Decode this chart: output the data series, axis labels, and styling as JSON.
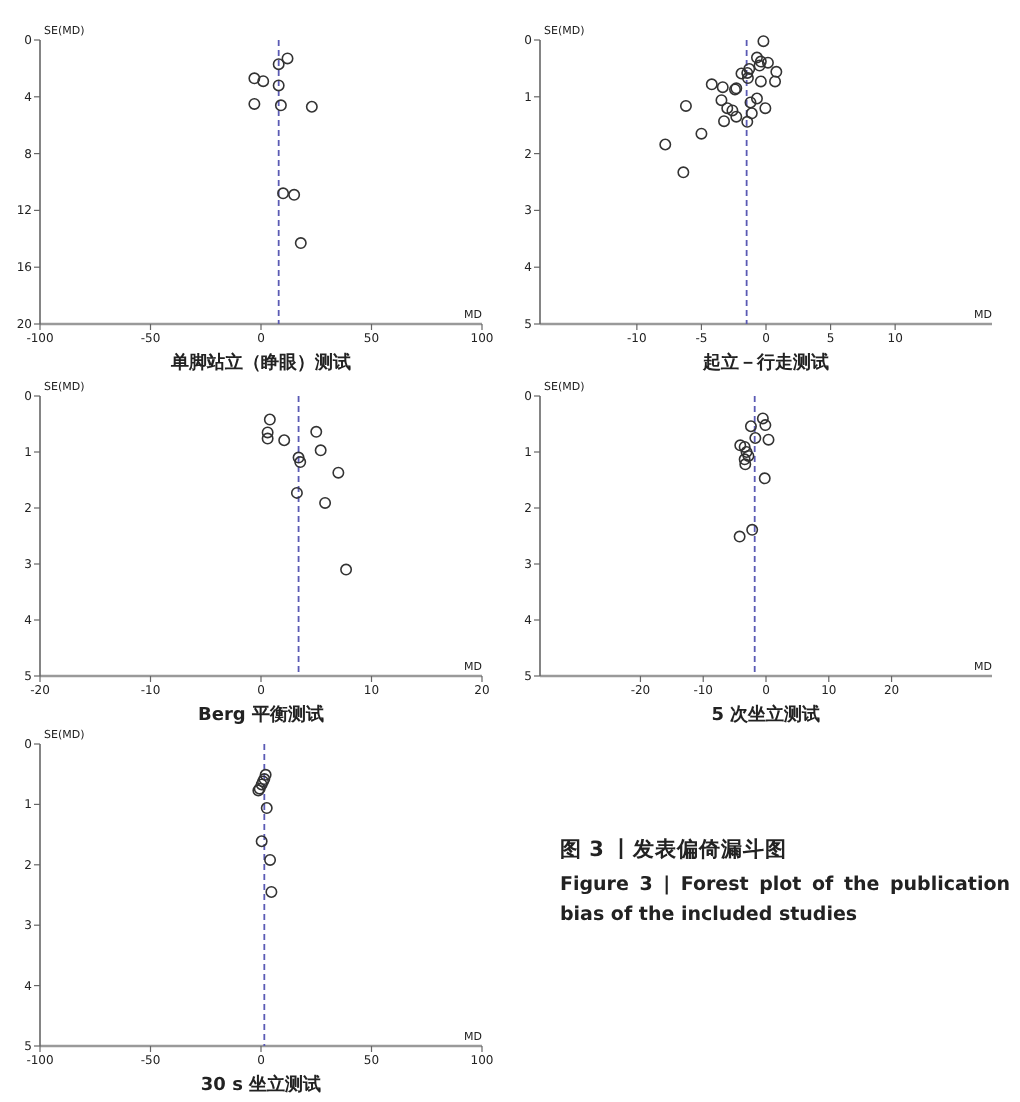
{
  "chart_data": [
    {
      "type": "scatter",
      "title": "单脚站立（睁眼）测试",
      "xlabel": "MD",
      "ylabel": "SE(MD)",
      "xlim": [
        -100,
        100
      ],
      "ylim": [
        20,
        0
      ],
      "xticks": [
        -100,
        -50,
        0,
        50,
        100
      ],
      "yticks": [
        0,
        4,
        8,
        12,
        16,
        20
      ],
      "grid": false,
      "marker": "circle",
      "series": [
        {
          "color": "#333333",
          "x": [
            12,
            8,
            -3,
            1,
            8,
            -3,
            9,
            23,
            10,
            15,
            18
          ],
          "values": [
            1.3,
            1.7,
            2.7,
            2.9,
            3.2,
            4.5,
            4.6,
            4.7,
            10.8,
            10.9,
            14.3
          ]
        }
      ],
      "ref_lines": [
        {
          "axis": "x",
          "value": 8,
          "color": "#5a5ab4",
          "line_style": "dashed"
        }
      ]
    },
    {
      "type": "scatter",
      "title": "起立－行走测试",
      "xlabel": "MD",
      "ylabel": "SE(MD)",
      "xlim": [
        -17.5,
        17.5
      ],
      "ylim": [
        5,
        0
      ],
      "xticks": [
        -10,
        -5,
        0,
        5,
        10
      ],
      "yticks": [
        0,
        1,
        2,
        3,
        4,
        5
      ],
      "grid": false,
      "marker": "circle",
      "series": [
        {
          "color": "#333333",
          "x": [
            -0.2,
            -0.7,
            -0.4,
            0.15,
            -0.5,
            0.8,
            -1.3,
            -1.45,
            -1.9,
            -1.4,
            0.7,
            -0.4,
            -4.2,
            -3.35,
            -2.3,
            -2.4,
            -0.7,
            -3.45,
            -1.2,
            -6.2,
            -3.0,
            -2.6,
            -0.05,
            -1.1,
            -2.3,
            -3.25,
            -1.45,
            -5.0,
            -7.8,
            -6.4
          ],
          "values": [
            0.02,
            0.31,
            0.38,
            0.4,
            0.45,
            0.56,
            0.51,
            0.58,
            0.59,
            0.67,
            0.73,
            0.73,
            0.78,
            0.83,
            0.85,
            0.87,
            1.03,
            1.06,
            1.1,
            1.16,
            1.2,
            1.24,
            1.2,
            1.29,
            1.35,
            1.43,
            1.44,
            1.65,
            1.84,
            2.33
          ]
        }
      ],
      "ref_lines": [
        {
          "axis": "x",
          "value": -1.5,
          "color": "#5a5ab4",
          "line_style": "dashed"
        }
      ]
    },
    {
      "type": "scatter",
      "title": "Berg 平衡测试",
      "xlabel": "MD",
      "ylabel": "SE(MD)",
      "xlim": [
        -20,
        20
      ],
      "ylim": [
        5,
        0
      ],
      "xticks": [
        -20,
        -10,
        0,
        10,
        20
      ],
      "yticks": [
        0,
        1,
        2,
        3,
        4,
        5
      ],
      "grid": false,
      "marker": "circle",
      "series": [
        {
          "color": "#333333",
          "x": [
            0.8,
            0.6,
            0.6,
            2.1,
            5.0,
            5.4,
            3.4,
            3.55,
            7.0,
            3.25,
            5.8,
            7.7
          ],
          "values": [
            0.42,
            0.65,
            0.76,
            0.79,
            0.64,
            0.97,
            1.1,
            1.18,
            1.37,
            1.73,
            1.91,
            3.1
          ]
        }
      ],
      "ref_lines": [
        {
          "axis": "x",
          "value": 3.4,
          "color": "#5a5ab4",
          "line_style": "dashed"
        }
      ]
    },
    {
      "type": "scatter",
      "title": "5 次坐立测试",
      "xlabel": "MD",
      "ylabel": "SE(MD)",
      "xlim": [
        -36,
        36
      ],
      "ylim": [
        5,
        0
      ],
      "xticks": [
        -20,
        -10,
        0,
        10,
        20
      ],
      "yticks": [
        0,
        1,
        2,
        3,
        4,
        5
      ],
      "grid": false,
      "marker": "circle",
      "series": [
        {
          "color": "#333333",
          "x": [
            -0.5,
            -0.1,
            -2.4,
            -1.7,
            0.4,
            -4.1,
            -3.4,
            -3.1,
            -2.8,
            -3.4,
            -3.3,
            -0.2,
            -2.2,
            -4.2
          ],
          "values": [
            0.4,
            0.52,
            0.54,
            0.75,
            0.78,
            0.88,
            0.91,
            1.0,
            1.07,
            1.13,
            1.22,
            1.47,
            2.39,
            2.51
          ]
        }
      ],
      "ref_lines": [
        {
          "axis": "x",
          "value": -1.8,
          "color": "#5a5ab4",
          "line_style": "dashed"
        }
      ]
    },
    {
      "type": "scatter",
      "title": "30 s 坐立测试",
      "xlabel": "MD",
      "ylabel": "SE(MD)",
      "xlim": [
        -100,
        100
      ],
      "ylim": [
        5,
        0
      ],
      "xticks": [
        -100,
        -50,
        0,
        50,
        100
      ],
      "yticks": [
        0,
        1,
        2,
        3,
        4,
        5
      ],
      "grid": false,
      "marker": "circle",
      "series": [
        {
          "color": "#333333",
          "x": [
            2.1,
            1.5,
            0.9,
            0.3,
            -0.6,
            -1.2,
            2.6,
            0.3,
            4.1,
            4.7
          ],
          "values": [
            0.51,
            0.58,
            0.62,
            0.67,
            0.74,
            0.77,
            1.06,
            1.61,
            1.92,
            2.45
          ]
        }
      ],
      "ref_lines": [
        {
          "axis": "x",
          "value": 1.5,
          "color": "#5a5ab4",
          "line_style": "dashed"
        }
      ]
    },
    {
      "type": "other",
      "title": "图 3 丨发表偏倚漏斗图",
      "subtitle": "Figure 3 | Forest plot of the publication bias of the included studies"
    }
  ]
}
